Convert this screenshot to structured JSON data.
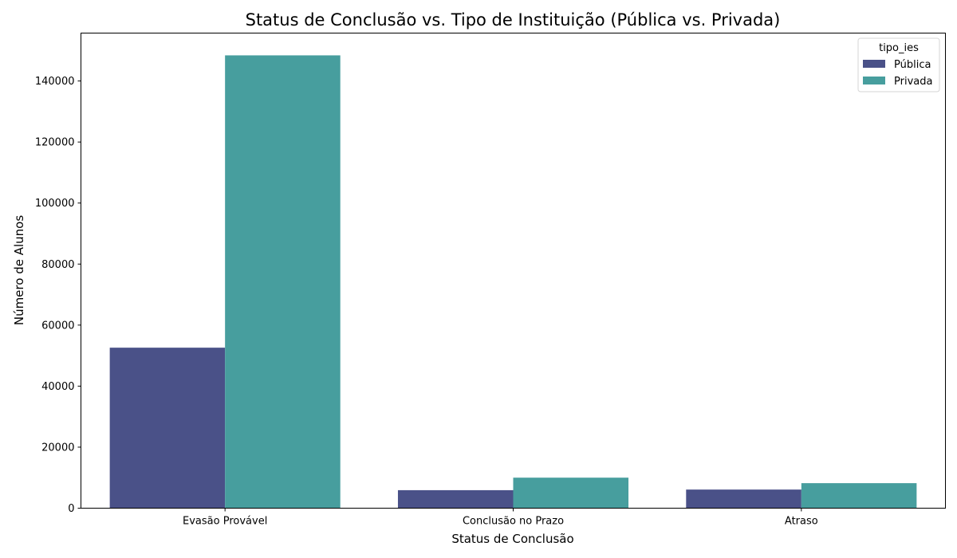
{
  "chart_data": {
    "type": "bar",
    "title": "Status de Conclusão vs. Tipo de Instituição (Pública vs. Privada)",
    "xlabel": "Status de Conclusão",
    "ylabel": "Número de Alunos",
    "categories": [
      "Evasão Provável",
      "Conclusão no Prazo",
      "Atraso"
    ],
    "series": [
      {
        "name": "Pública",
        "values": [
          52600,
          5900,
          6100
        ],
        "color": "#4a5188"
      },
      {
        "name": "Privada",
        "values": [
          148400,
          10000,
          8200
        ],
        "color": "#479e9e"
      }
    ],
    "ylim": [
      0,
      155700
    ],
    "yticks": [
      0,
      20000,
      40000,
      60000,
      80000,
      100000,
      120000,
      140000
    ],
    "grid": false,
    "legend": {
      "title": "tipo_ies",
      "placement": "top-right"
    }
  }
}
